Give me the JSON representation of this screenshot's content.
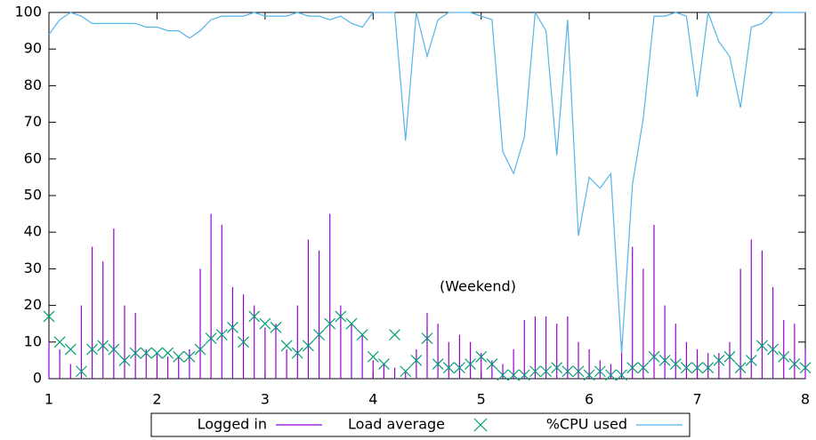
{
  "chart_data": {
    "type": "line",
    "x": [
      1,
      1.1,
      1.2,
      1.3,
      1.4,
      1.5,
      1.6,
      1.7,
      1.8,
      1.9,
      2,
      2.1,
      2.2,
      2.3,
      2.4,
      2.5,
      2.6,
      2.7,
      2.8,
      2.9,
      3,
      3.1,
      3.2,
      3.3,
      3.4,
      3.5,
      3.6,
      3.7,
      3.8,
      3.9,
      4,
      4.1,
      4.2,
      4.3,
      4.4,
      4.5,
      4.6,
      4.7,
      4.8,
      4.9,
      5,
      5.1,
      5.2,
      5.3,
      5.4,
      5.5,
      5.6,
      5.7,
      5.8,
      5.9,
      6,
      6.1,
      6.2,
      6.3,
      6.4,
      6.5,
      6.6,
      6.7,
      6.8,
      6.9,
      7,
      7.1,
      7.2,
      7.3,
      7.4,
      7.5,
      7.6,
      7.7,
      7.8,
      7.9,
      8
    ],
    "series": [
      {
        "name": "Logged in",
        "style": "impulses",
        "color": "#9400d3",
        "values": [
          10,
          8,
          4,
          20,
          36,
          32,
          41,
          20,
          18,
          8,
          7,
          6,
          6,
          8,
          30,
          45,
          42,
          25,
          23,
          20,
          14,
          15,
          8,
          20,
          38,
          35,
          45,
          20,
          15,
          12,
          5,
          4,
          3,
          2,
          8,
          18,
          15,
          10,
          12,
          10,
          7,
          5,
          4,
          8,
          16,
          17,
          17,
          15,
          17,
          10,
          8,
          5,
          4,
          10,
          36,
          30,
          42,
          20,
          15,
          10,
          8,
          7,
          7,
          10,
          30,
          38,
          35,
          25,
          16,
          15,
          8
        ]
      },
      {
        "name": "Load average",
        "style": "points",
        "color": "#009e73",
        "values": [
          17,
          10,
          8,
          2,
          8,
          9,
          8,
          5,
          7,
          7,
          7,
          7,
          6,
          6,
          8,
          11,
          12,
          14,
          10,
          17,
          15,
          14,
          9,
          7,
          9,
          12,
          15,
          17,
          15,
          12,
          6,
          4,
          12,
          2,
          5,
          11,
          4,
          3,
          3,
          4,
          6,
          4,
          1,
          1,
          1,
          2,
          2,
          3,
          2,
          2,
          1,
          2,
          1,
          1,
          3,
          3,
          6,
          5,
          4,
          3,
          3,
          3,
          5,
          6,
          3,
          5,
          9,
          8,
          6,
          4,
          3
        ]
      },
      {
        "name": "%CPU used",
        "style": "lines",
        "color": "#56b4e9",
        "values": [
          94,
          98,
          100,
          99,
          97,
          97,
          97,
          97,
          97,
          96,
          96,
          95,
          95,
          93,
          95,
          98,
          99,
          99,
          99,
          100,
          99,
          99,
          99,
          100,
          99,
          99,
          98,
          99,
          97,
          96,
          100,
          100,
          100,
          65,
          100,
          88,
          98,
          100,
          100,
          100,
          99,
          98,
          62,
          56,
          66,
          100,
          95,
          61,
          98,
          39,
          55,
          52,
          56,
          7,
          53,
          71,
          99,
          99,
          100,
          99,
          77,
          100,
          92,
          88,
          74,
          96,
          97,
          100,
          100,
          100,
          100
        ]
      }
    ],
    "annotation": "(Weekend)",
    "xlim": [
      1,
      8
    ],
    "xticks": [
      1,
      2,
      3,
      4,
      5,
      6,
      7,
      8
    ],
    "ylim": [
      0,
      100
    ],
    "yticks": [
      0,
      10,
      20,
      30,
      40,
      50,
      60,
      70,
      80,
      90,
      100
    ],
    "grid": false,
    "legend": "below"
  }
}
